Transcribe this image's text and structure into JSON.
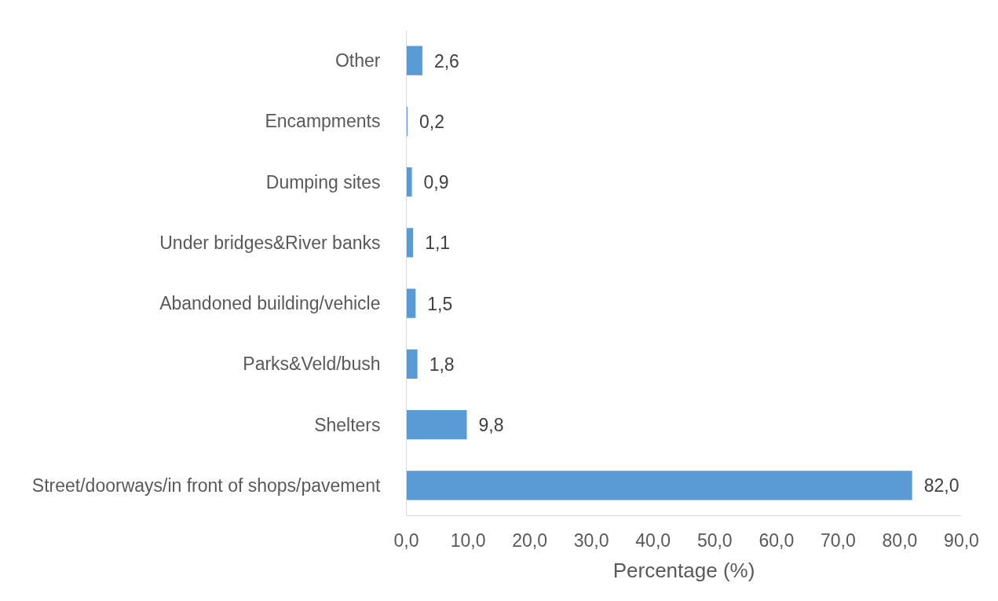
{
  "chart_data": {
    "type": "bar",
    "orientation": "horizontal",
    "xlabel": "Percentage (%)",
    "categories": [
      "Other",
      "Encampments",
      "Dumping sites",
      "Under bridges&River banks",
      "Abandoned building/vehicle",
      "Parks&Veld/bush",
      "Shelters",
      "Street/doorways/in front of shops/pavement"
    ],
    "values": [
      2.6,
      0.2,
      0.9,
      1.1,
      1.5,
      1.8,
      9.8,
      82.0
    ],
    "value_labels": [
      "2,6",
      "0,2",
      "0,9",
      "1,1",
      "1,5",
      "1,8",
      "9,8",
      "82,0"
    ],
    "color": "#5b9bd5",
    "xlim": [
      0,
      90
    ],
    "xticks": [
      {
        "value": 0,
        "label": "0,0"
      },
      {
        "value": 10,
        "label": "10,0"
      },
      {
        "value": 20,
        "label": "20,0"
      },
      {
        "value": 30,
        "label": "30,0"
      },
      {
        "value": 40,
        "label": "40,0"
      },
      {
        "value": 50,
        "label": "50,0"
      },
      {
        "value": 60,
        "label": "60,0"
      },
      {
        "value": 70,
        "label": "70,0"
      },
      {
        "value": 80,
        "label": "80,0"
      },
      {
        "value": 90,
        "label": "90,0"
      }
    ]
  }
}
